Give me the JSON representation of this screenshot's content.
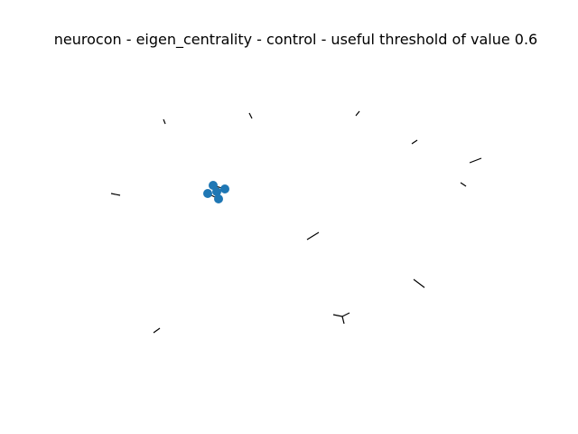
{
  "figure": {
    "title": "neurocon - eigen_centrality - control - useful threshold of value 0.6"
  },
  "graph": {
    "node_color": "#1f77b4",
    "edge_color": "#000000",
    "background": "#ffffff"
  }
}
